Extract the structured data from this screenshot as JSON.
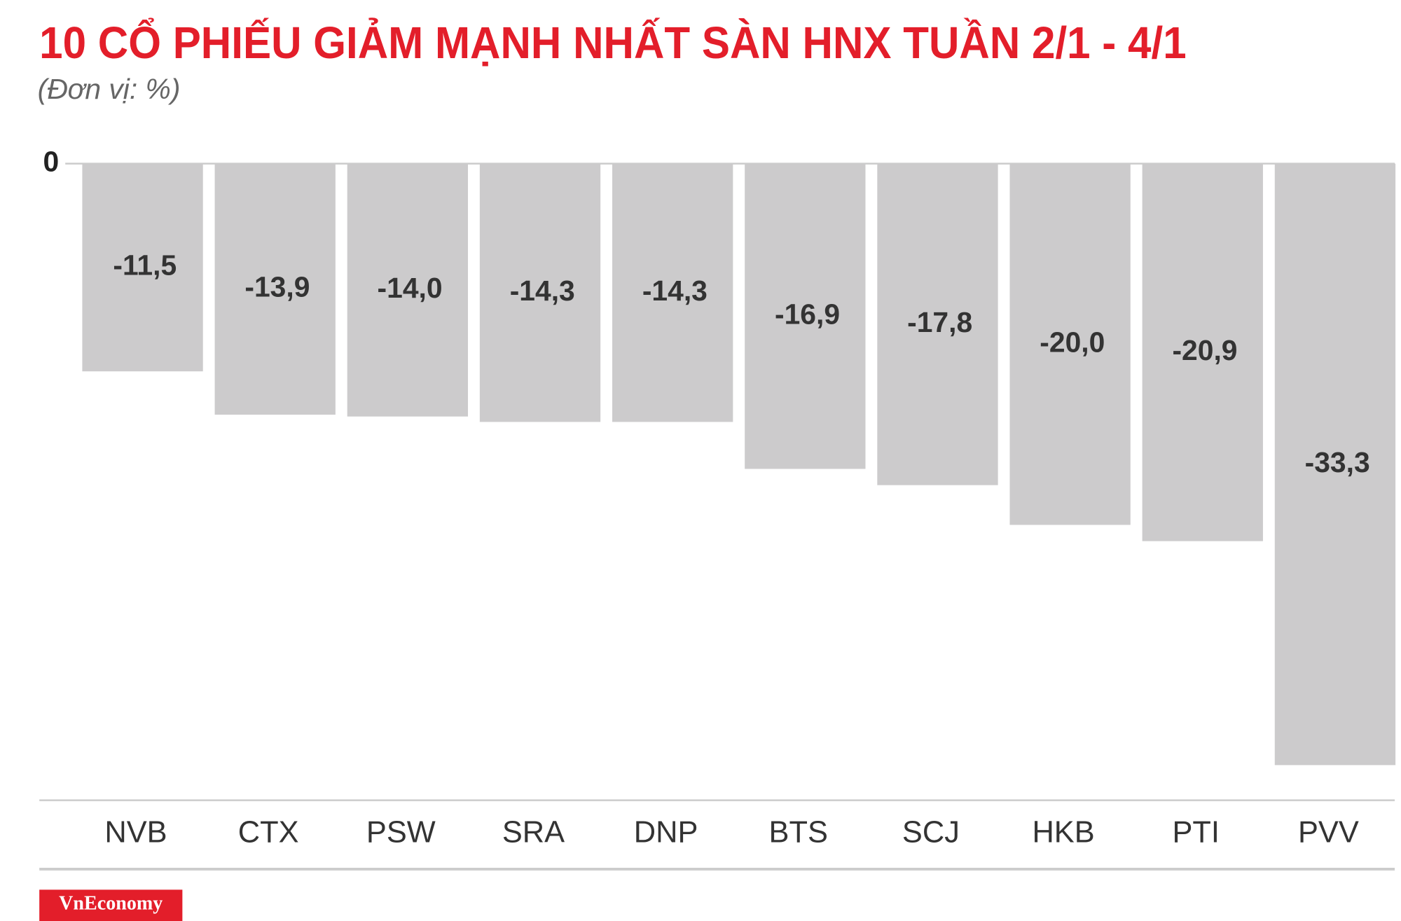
{
  "chart_data": {
    "type": "bar",
    "title": "10 CỔ PHIẾU GIẢM MẠNH NHẤT SÀN HNX TUẦN 2/1 - 4/1",
    "subtitle": "(Đơn vị: %)",
    "categories": [
      "NVB",
      "CTX",
      "PSW",
      "SRA",
      "DNP",
      "BTS",
      "SCJ",
      "HKB",
      "PTI",
      "PVV"
    ],
    "values": [
      -11.5,
      -13.9,
      -14.0,
      -14.3,
      -14.3,
      -16.9,
      -17.8,
      -20.0,
      -20.9,
      -33.3
    ],
    "value_labels": [
      "-11,5",
      "-13,9",
      "-14,0",
      "-14,3",
      "-14,3",
      "-16,9",
      "-17,8",
      "-20,0",
      "-20,9",
      "-33,3"
    ],
    "color": "#cccbcc",
    "ylim": [
      -35,
      0
    ],
    "yticks": [
      0
    ],
    "source": "VnEconomy"
  }
}
